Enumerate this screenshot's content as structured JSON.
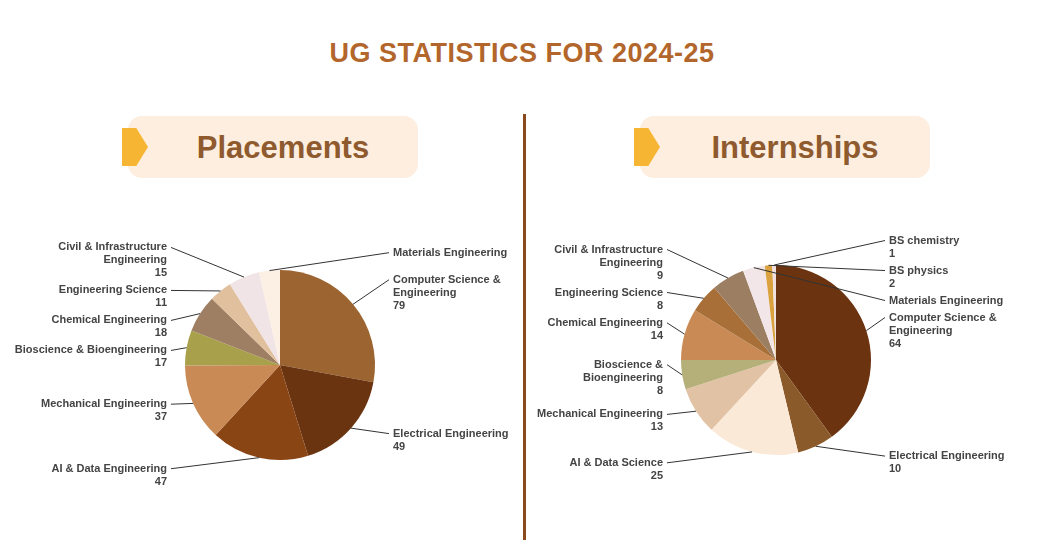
{
  "title": "UG STATISTICS FOR 2024-25",
  "chart_data": [
    {
      "type": "pie",
      "title": "Placements",
      "categories": [
        "Computer Science & Engineering",
        "Electrical Engineering",
        "AI & Data Engineering",
        "Mechanical Engineering",
        "Bioscience & Bioengineering",
        "Chemical Engineering",
        "Engineering Science",
        "Civil & Infrastructure Engineering",
        "Materials Engineering"
      ],
      "values": [
        79,
        49,
        47,
        37,
        17,
        18,
        11,
        15,
        10
      ],
      "value_labels": [
        "79",
        "49",
        "47",
        "37",
        "17",
        "18",
        "11",
        "15",
        null
      ],
      "colors": [
        "#9c6430",
        "#6b3410",
        "#8a4515",
        "#c98a55",
        "#a8a04a",
        "#9e7f63",
        "#e0c09d",
        "#f0e4e6",
        "#fcefe3"
      ],
      "data_labels": true
    },
    {
      "type": "pie",
      "title": "Internships",
      "categories": [
        "Computer Science & Engineering",
        "Electrical Engineering",
        "AI & Data Science",
        "Mechanical Engineering",
        "Bioscience & Bioengineering",
        "Chemical Engineering",
        "Engineering Science",
        "Civil & Infrastructure Engineering",
        "Materials Engineering",
        "BS physics",
        "BS chemistry"
      ],
      "values": [
        64,
        10,
        25,
        13,
        8,
        14,
        8,
        9,
        6,
        2,
        1
      ],
      "value_labels": [
        "64",
        "10",
        "25",
        "13",
        "8",
        "14",
        "8",
        "9",
        null,
        "2",
        "1"
      ],
      "colors": [
        "#6b3310",
        "#8b5a2b",
        "#fbe9d8",
        "#e2c2a4",
        "#b5b07a",
        "#c98a55",
        "#a87038",
        "#9c7f63",
        "#f3e6e8",
        "#d9a23f",
        "#f0e0e0"
      ],
      "data_labels": true
    }
  ]
}
